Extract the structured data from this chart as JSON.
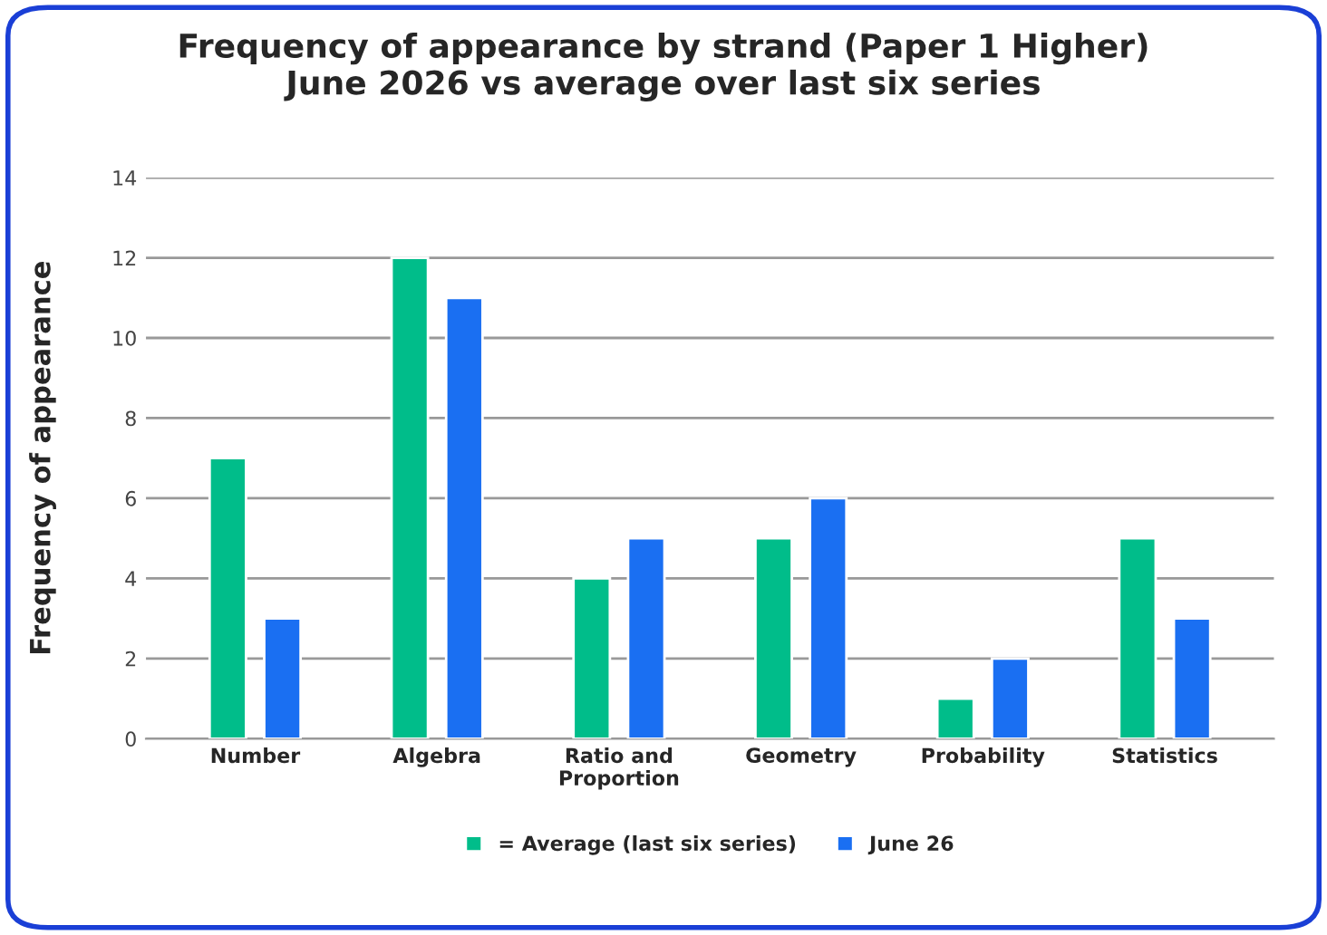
{
  "chart_data": {
    "type": "bar",
    "title": "Frequency of appearance by strand (Paper 1 Higher)\nJune 2026 vs average over last six series",
    "ylabel": "Frequency of appearance",
    "categories": [
      "Number",
      "Algebra",
      "Ratio and\nProportion",
      "Geometry",
      "Probability",
      "Statistics"
    ],
    "series": [
      {
        "name": "= Average (last six series)",
        "color": "#00bd8a",
        "values": [
          7,
          12,
          4,
          5,
          1,
          5
        ]
      },
      {
        "name": "June 26",
        "color": "#1a6ff2",
        "values": [
          3,
          11,
          5,
          6,
          2,
          3
        ]
      }
    ],
    "ylim": [
      0,
      14
    ],
    "yticks": [
      0,
      2,
      4,
      6,
      8,
      10,
      12,
      14
    ],
    "grid": "y",
    "legend": "bottom"
  }
}
